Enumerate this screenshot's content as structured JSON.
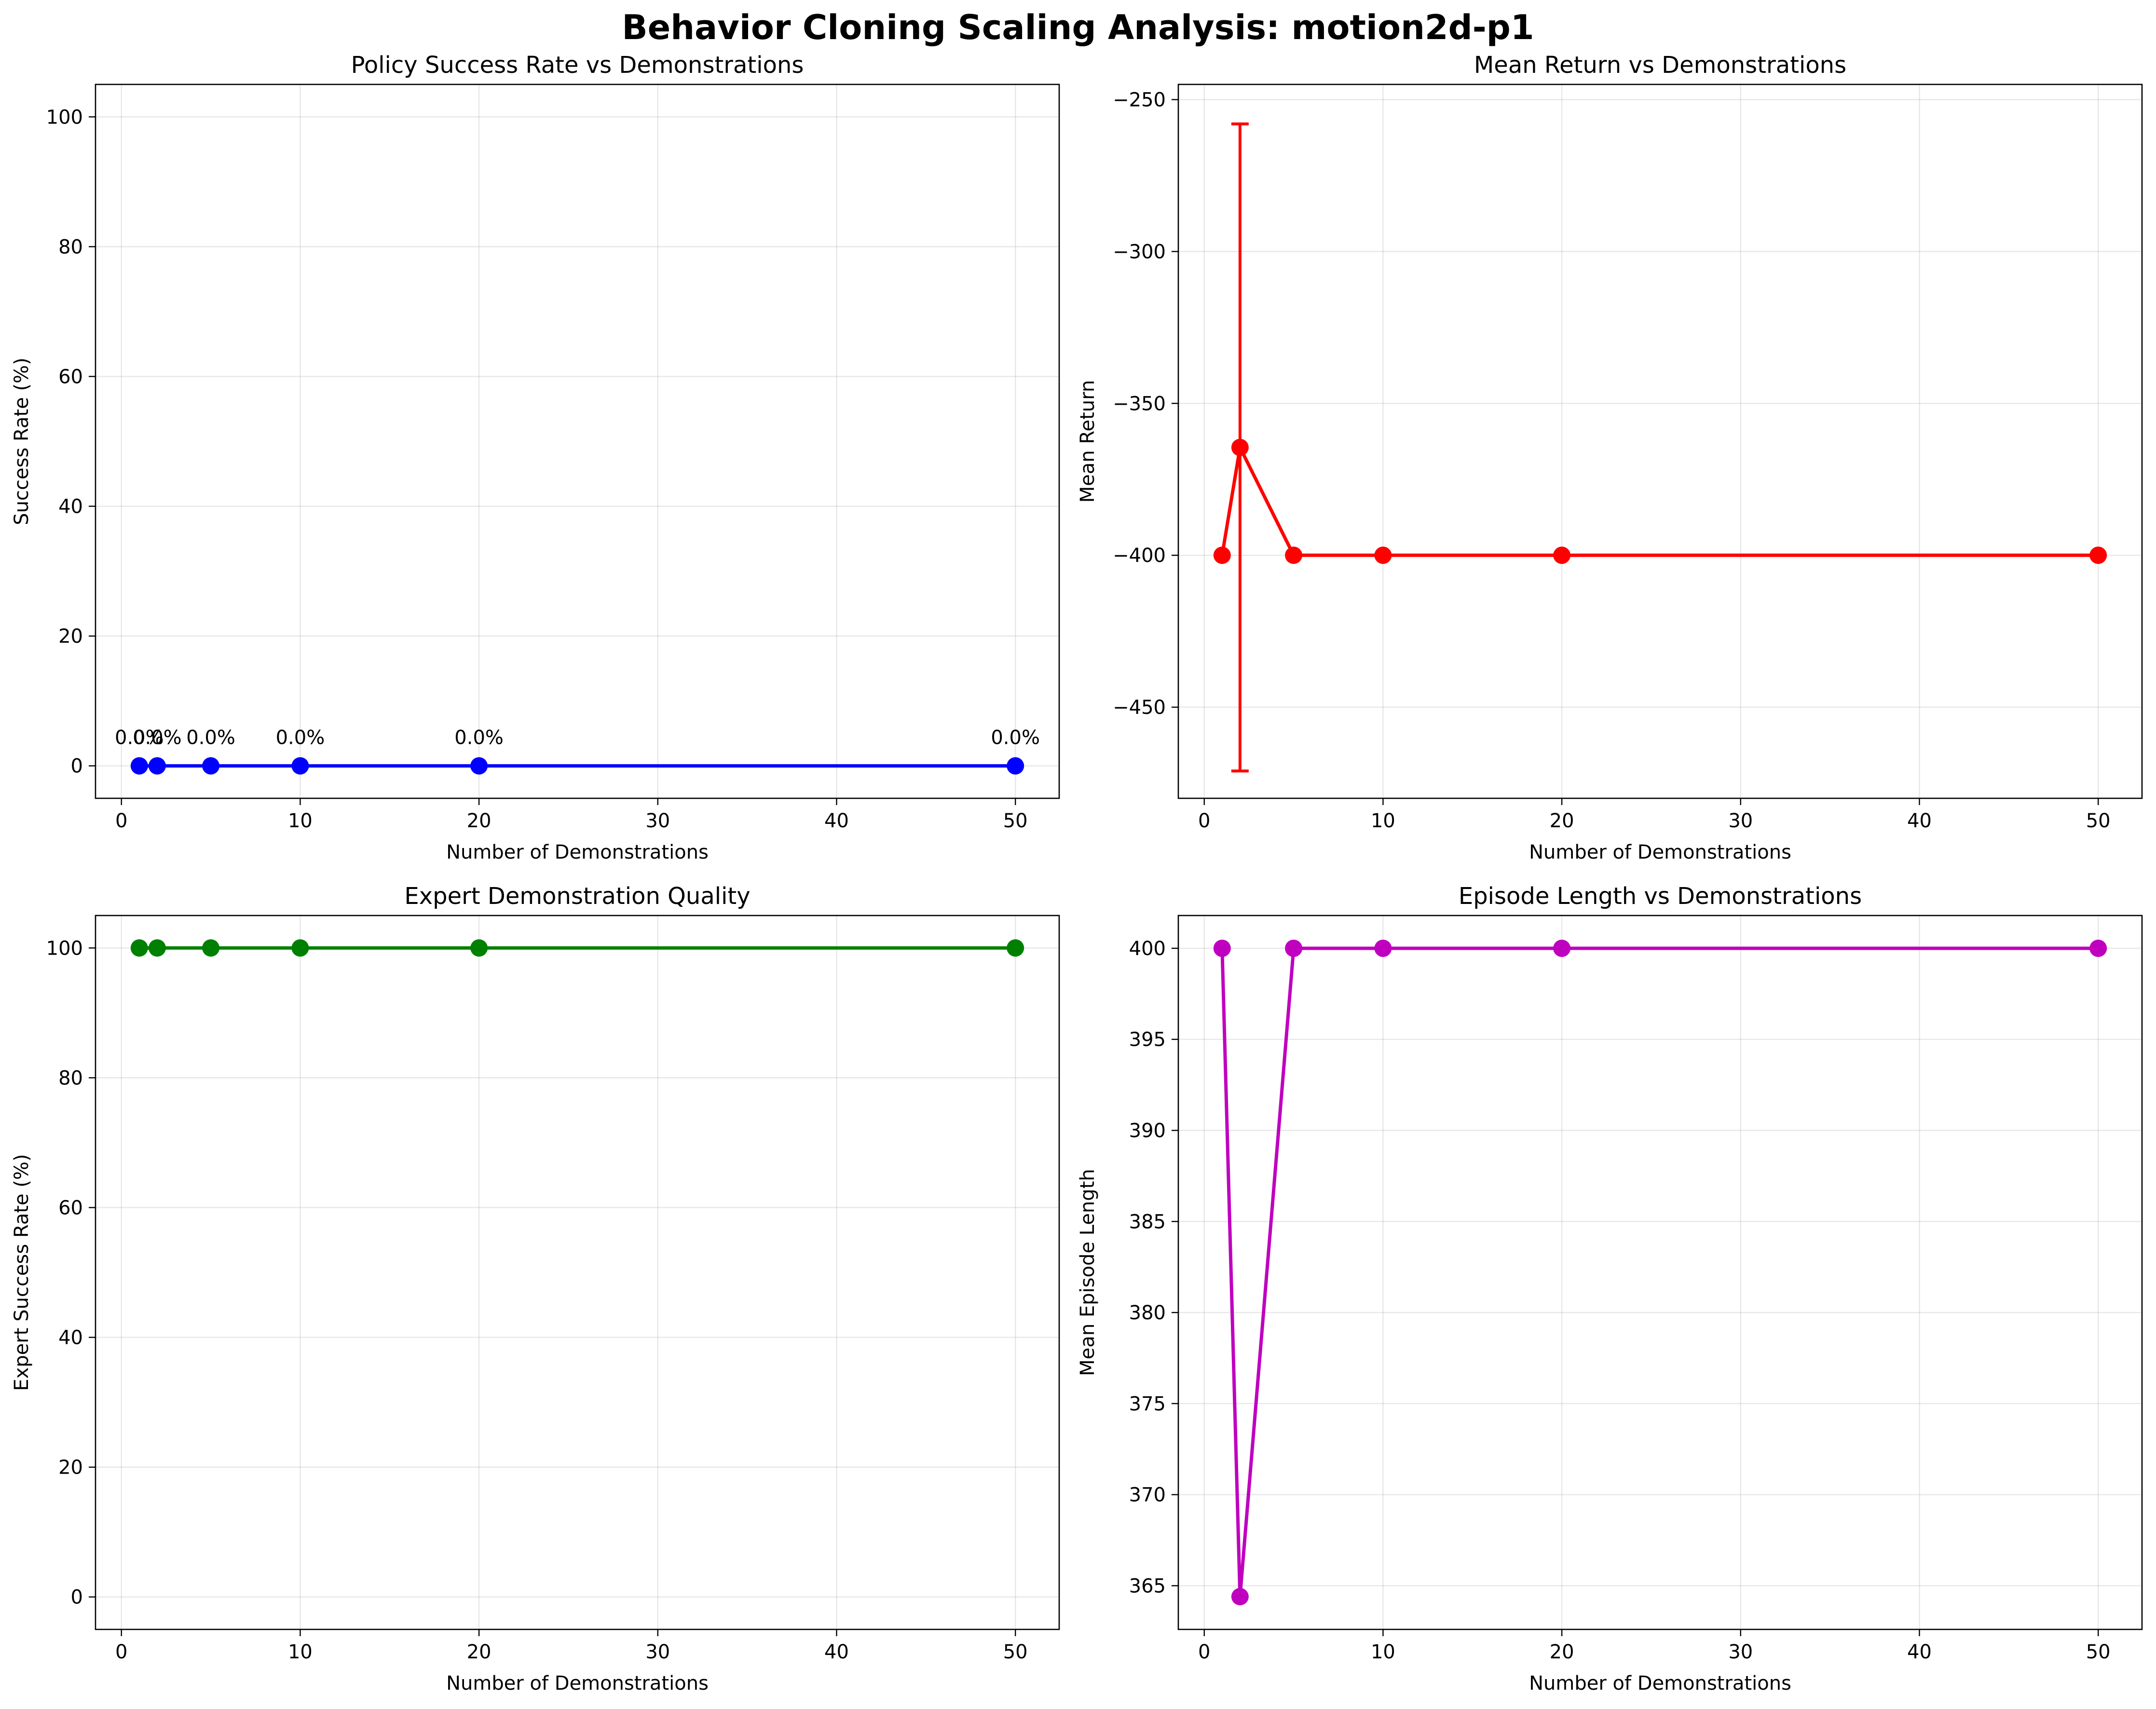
{
  "figure": {
    "title": "Behavior Cloning Scaling Analysis: motion2d-p1"
  },
  "chart_data": [
    {
      "type": "line",
      "title": "Policy Success Rate vs Demonstrations",
      "xlabel": "Number of Demonstrations",
      "ylabel": "Success Rate (%)",
      "xlim": [
        -1.45,
        52.45
      ],
      "ylim": [
        -5,
        105
      ],
      "xticks": [
        0,
        10,
        20,
        30,
        40,
        50
      ],
      "yticks": [
        0,
        20,
        40,
        60,
        80,
        100
      ],
      "grid": true,
      "color": "#0000ff",
      "x": [
        1,
        2,
        5,
        10,
        20,
        50
      ],
      "y": [
        0,
        0,
        0,
        0,
        0,
        0
      ],
      "point_labels": [
        "0.0%",
        "0.0%",
        "0.0%",
        "0.0%",
        "0.0%",
        "0.0%"
      ]
    },
    {
      "type": "line",
      "title": "Mean Return vs Demonstrations",
      "xlabel": "Number of Demonstrations",
      "ylabel": "Mean Return",
      "xlim": [
        -1.45,
        52.45
      ],
      "ylim": [
        -480,
        -245
      ],
      "xticks": [
        0,
        10,
        20,
        30,
        40,
        50
      ],
      "yticks": [
        -450,
        -400,
        -350,
        -300,
        -250
      ],
      "ytick_labels": [
        "−450",
        "−400",
        "−350",
        "−300",
        "−250"
      ],
      "grid": true,
      "color": "#ff0000",
      "x": [
        1,
        2,
        5,
        10,
        20,
        50
      ],
      "y": [
        -400,
        -364.5,
        -400,
        -400,
        -400,
        -400
      ],
      "yerr": [
        0,
        106.5,
        0,
        0,
        0,
        0
      ]
    },
    {
      "type": "line",
      "title": "Expert Demonstration Quality",
      "xlabel": "Number of Demonstrations",
      "ylabel": "Expert Success Rate (%)",
      "xlim": [
        -1.45,
        52.45
      ],
      "ylim": [
        -5,
        105
      ],
      "xticks": [
        0,
        10,
        20,
        30,
        40,
        50
      ],
      "yticks": [
        0,
        20,
        40,
        60,
        80,
        100
      ],
      "grid": true,
      "color": "#008000",
      "x": [
        1,
        2,
        5,
        10,
        20,
        50
      ],
      "y": [
        100,
        100,
        100,
        100,
        100,
        100
      ]
    },
    {
      "type": "line",
      "title": "Episode Length vs Demonstrations",
      "xlabel": "Number of Demonstrations",
      "ylabel": "Mean Episode Length",
      "xlim": [
        -1.45,
        52.45
      ],
      "ylim": [
        362.6,
        401.8
      ],
      "xticks": [
        0,
        10,
        20,
        30,
        40,
        50
      ],
      "yticks": [
        365,
        370,
        375,
        380,
        385,
        390,
        395,
        400
      ],
      "grid": true,
      "color": "#bf00bf",
      "x": [
        1,
        2,
        5,
        10,
        20,
        50
      ],
      "y": [
        400,
        364.4,
        400,
        400,
        400,
        400
      ]
    }
  ]
}
